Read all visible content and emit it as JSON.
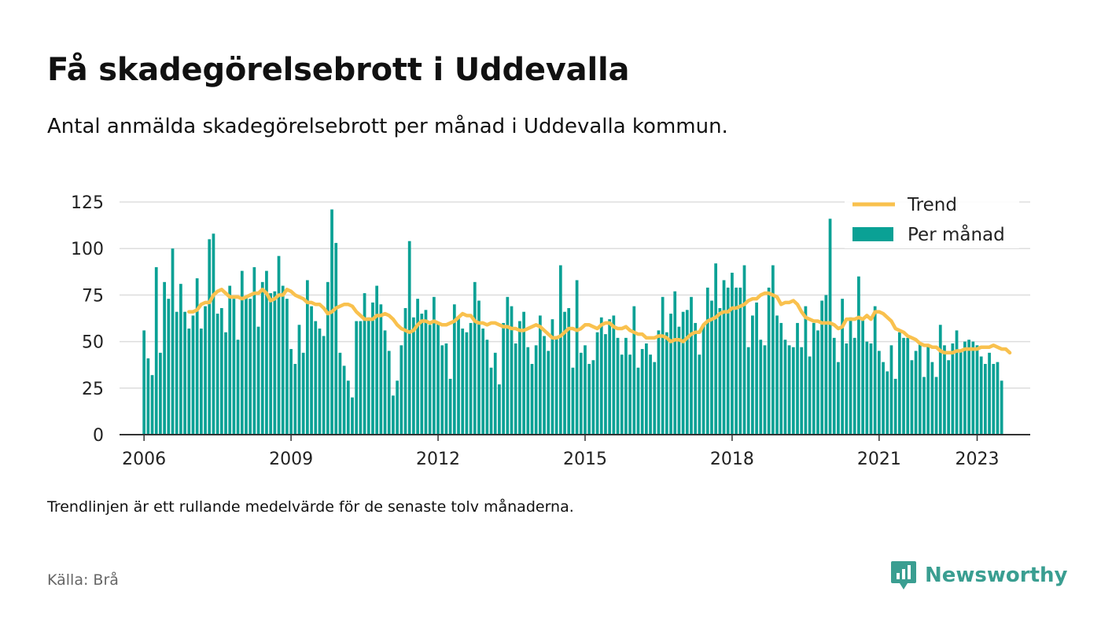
{
  "title": "Få skadegörelsebrott i Uddevalla",
  "subtitle": "Antal anmälda skadegörelsebrott per månad i Uddevalla kommun.",
  "footnote": "Trendlinjen är ett rullande medelvärde för de senaste tolv månaderna.",
  "source": "Källa: Brå",
  "brand": "Newsworthy",
  "colors": {
    "bar": "#0aa195",
    "trend": "#f9c14e",
    "grid": "#dddddd",
    "axis": "#333333",
    "brand": "#3a9e91"
  },
  "chart_data": {
    "type": "bar",
    "x_start": "2006-01",
    "xlim": [
      "2005-07",
      "2024-02"
    ],
    "ylim": [
      0,
      125
    ],
    "yticks": [
      0,
      25,
      50,
      75,
      100,
      125
    ],
    "xticks": [
      "2006",
      "2009",
      "2012",
      "2015",
      "2018",
      "2021",
      "2023"
    ],
    "grid": true,
    "legend_position": "top-right",
    "series": [
      {
        "name": "Per månad",
        "type": "bar",
        "values": [
          56,
          41,
          32,
          90,
          44,
          82,
          73,
          100,
          66,
          81,
          66,
          57,
          64,
          84,
          57,
          69,
          105,
          108,
          65,
          68,
          55,
          80,
          73,
          51,
          88,
          74,
          73,
          90,
          58,
          82,
          88,
          76,
          77,
          96,
          80,
          73,
          46,
          38,
          59,
          44,
          83,
          69,
          61,
          57,
          53,
          82,
          121,
          103,
          44,
          37,
          29,
          20,
          61,
          61,
          76,
          63,
          71,
          80,
          70,
          56,
          45,
          21,
          29,
          48,
          68,
          104,
          63,
          73,
          65,
          67,
          59,
          74,
          60,
          48,
          49,
          30,
          70,
          63,
          57,
          55,
          60,
          82,
          72,
          57,
          51,
          36,
          44,
          27,
          60,
          74,
          69,
          49,
          61,
          66,
          47,
          38,
          48,
          64,
          53,
          45,
          62,
          53,
          91,
          66,
          68,
          36,
          83,
          44,
          48,
          38,
          40,
          55,
          63,
          54,
          62,
          64,
          52,
          43,
          52,
          43,
          69,
          36,
          46,
          49,
          43,
          39,
          56,
          74,
          55,
          65,
          77,
          58,
          66,
          67,
          74,
          60,
          43,
          59,
          79,
          72,
          92,
          68,
          83,
          79,
          87,
          79,
          79,
          91,
          47,
          64,
          71,
          51,
          48,
          79,
          91,
          64,
          60,
          51,
          48,
          47,
          60,
          47,
          69,
          42,
          60,
          56,
          72,
          75,
          116,
          52,
          39,
          73,
          49,
          63,
          52,
          85,
          63,
          50,
          49,
          69,
          45,
          39,
          34,
          48,
          30,
          55,
          52,
          52,
          40,
          45,
          49,
          31,
          48,
          39,
          31,
          59,
          48,
          40,
          49,
          56,
          45,
          50,
          51,
          50,
          48,
          42,
          38,
          44,
          38,
          39,
          29
        ]
      },
      {
        "name": "Trend",
        "type": "line",
        "x_offset_months": 11,
        "values": [
          66,
          66,
          67,
          70,
          71,
          71,
          75,
          77,
          78,
          76,
          74,
          74,
          74,
          73,
          74,
          75,
          76,
          76,
          78,
          76,
          72,
          73,
          75,
          75,
          78,
          77,
          75,
          74,
          73,
          71,
          71,
          70,
          70,
          68,
          65,
          66,
          68,
          69,
          70,
          70,
          69,
          66,
          64,
          62,
          62,
          62,
          64,
          64,
          65,
          64,
          62,
          59,
          57,
          56,
          55,
          56,
          59,
          61,
          61,
          60,
          61,
          60,
          59,
          59,
          60,
          61,
          63,
          65,
          64,
          64,
          61,
          60,
          60,
          59,
          60,
          60,
          59,
          58,
          58,
          57,
          57,
          56,
          56,
          57,
          58,
          59,
          58,
          56,
          54,
          52,
          52,
          53,
          55,
          57,
          57,
          56,
          57,
          59,
          59,
          58,
          57,
          59,
          60,
          60,
          58,
          57,
          57,
          58,
          56,
          55,
          54,
          54,
          52,
          52,
          52,
          53,
          53,
          52,
          50,
          51,
          51,
          50,
          52,
          54,
          55,
          55,
          59,
          61,
          62,
          63,
          65,
          66,
          66,
          68,
          68,
          69,
          70,
          72,
          73,
          73,
          75,
          76,
          76,
          75,
          74,
          70,
          71,
          71,
          72,
          70,
          66,
          63,
          62,
          61,
          61,
          60,
          60,
          60,
          59,
          57,
          58,
          62,
          62,
          62,
          63,
          62,
          64,
          62,
          66,
          66,
          65,
          63,
          61,
          57,
          56,
          55,
          53,
          52,
          51,
          49,
          48,
          48,
          47,
          47,
          45,
          44,
          44,
          44,
          45,
          45,
          46,
          46,
          46,
          46,
          47,
          47,
          47,
          48,
          47,
          46,
          46,
          44
        ]
      }
    ]
  }
}
